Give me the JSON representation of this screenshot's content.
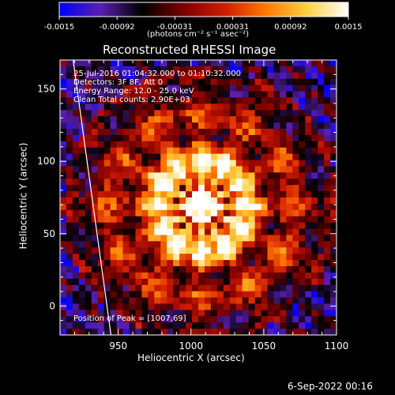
{
  "colorbar": {
    "ticks": [
      "-0.0015",
      "-0.00092",
      "-0.00031",
      "0.00031",
      "0.00092",
      "0.0015"
    ],
    "units_label": "(photons cm⁻² s⁻¹ asec⁻²)",
    "colormap": [
      "#0000ff",
      "#5a1fb0",
      "#000000",
      "#7a0000",
      "#d01a00",
      "#ff7a00",
      "#ffd040",
      "#ffffff"
    ]
  },
  "info": {
    "line1": "25-Jul-2016 01:04:32.000 to 01:10:32.000",
    "line2": "Detectors: 3F 8F, Att 0",
    "line3": "Energy Range: 12.0 - 25.0 keV",
    "line4": "Clean     Total counts: 2.90E+03"
  },
  "peak_label": "Position of Peak = [1007,69]",
  "timestamp": "6-Sep-2022 00:16",
  "chart_data": {
    "type": "heatmap",
    "title": "Reconstructed RHESSI Image",
    "xlabel": "Heliocentric X (arcsec)",
    "ylabel": "Heliocentric Y (arcsec)",
    "xlim": [
      910,
      1100
    ],
    "ylim": [
      -20,
      170
    ],
    "xticks": [
      950,
      1000,
      1050,
      1100
    ],
    "yticks": [
      0,
      50,
      100,
      150
    ],
    "value_range": [
      -0.0015,
      0.0015
    ],
    "peak": {
      "x": 1007,
      "y": 69
    },
    "limb_line": [
      {
        "x": 919,
        "y": 170
      },
      {
        "x": 945,
        "y": -20
      }
    ]
  }
}
